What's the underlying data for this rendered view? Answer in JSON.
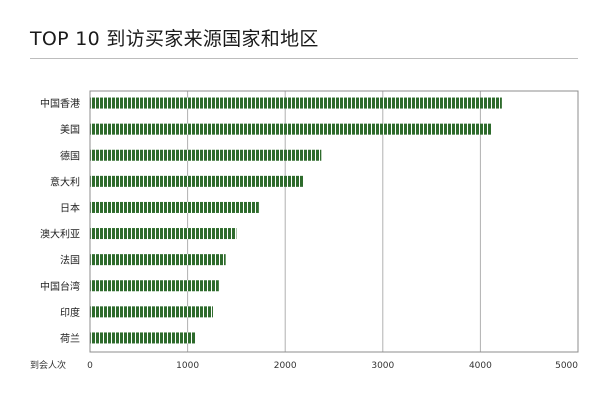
{
  "title": "TOP 10 到访买家来源国家和地区",
  "chart_data": {
    "type": "bar",
    "orientation": "horizontal",
    "title": "TOP 10 到访买家来源国家和地区",
    "xlabel": "到会人次",
    "ylabel": "",
    "categories": [
      "中国香港",
      "美国",
      "德国",
      "意大利",
      "日本",
      "澳大利亚",
      "法国",
      "中国台湾",
      "印度",
      "荷兰"
    ],
    "values": [
      4220,
      4110,
      2370,
      2190,
      1730,
      1500,
      1390,
      1320,
      1260,
      1080
    ],
    "xlim": [
      0,
      5000
    ],
    "ticks": [
      "0",
      "1000",
      "2000",
      "3000",
      "4000",
      "5000"
    ],
    "tick_values": [
      0,
      1000,
      2000,
      3000,
      4000,
      5000
    ],
    "grid": true,
    "legend": "none",
    "colors": {
      "bar": "#2e6b2c",
      "bar_stripe": "#ffffff",
      "grid": "#b0b0b0",
      "frame": "#8c8c8c"
    }
  }
}
